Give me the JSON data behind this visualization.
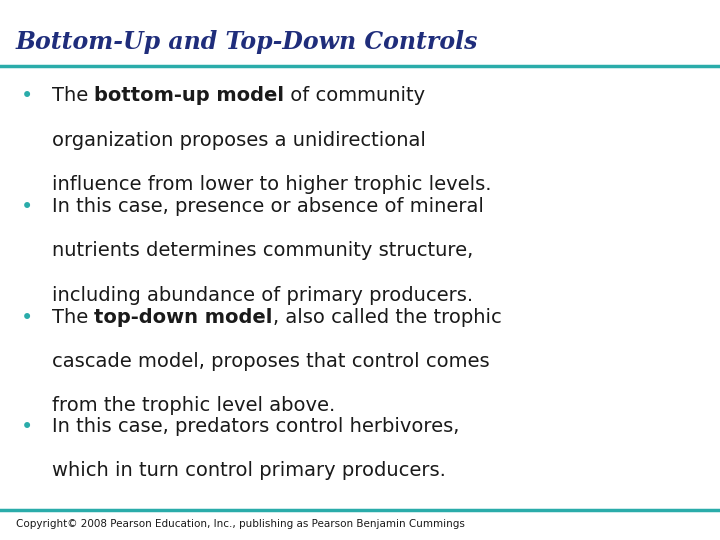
{
  "title": "Bottom-Up and Top-Down Controls",
  "title_color": "#1F2D7B",
  "title_fontsize": 17,
  "title_font": "serif",
  "separator_color": "#2AACAA",
  "separator_linewidth": 2.5,
  "background_color": "#FFFFFF",
  "bullet_color": "#2AACAA",
  "text_color": "#1a1a1a",
  "body_fontsize": 14,
  "body_font": "sans-serif",
  "copyright_text": "Copyright© 2008 Pearson Education, Inc., publishing as Pearson Benjamin Cummings",
  "copyright_fontsize": 7.5,
  "bullets": [
    {
      "parts": [
        {
          "text": "The ",
          "bold": false
        },
        {
          "text": "bottom-up model",
          "bold": true
        },
        {
          "text": " of community\norganization proposes a unidirectional\ninfluence from lower to higher trophic levels.",
          "bold": false
        }
      ]
    },
    {
      "parts": [
        {
          "text": "In this case, presence or absence of mineral\nnutrients determines community structure,\nincluding abundance of primary producers.",
          "bold": false
        }
      ]
    },
    {
      "parts": [
        {
          "text": "The ",
          "bold": false
        },
        {
          "text": "top-down model",
          "bold": true
        },
        {
          "text": ", also called the trophic\ncascade model, proposes that control comes\nfrom the trophic level above.",
          "bold": false
        }
      ]
    },
    {
      "parts": [
        {
          "text": "In this case, predators control herbivores,\nwhich in turn control primary producers.",
          "bold": false
        }
      ]
    }
  ]
}
